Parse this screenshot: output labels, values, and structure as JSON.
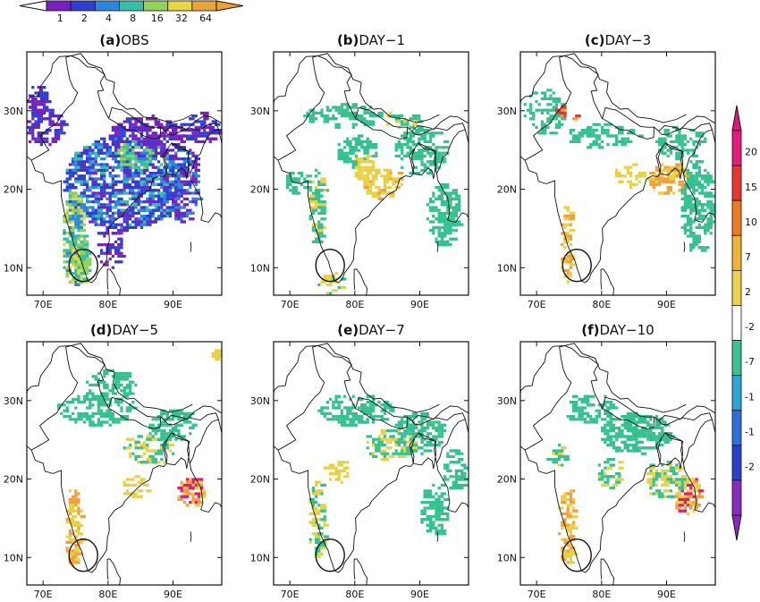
{
  "chart_data": {
    "type": "heatmap",
    "top_colorbar": {
      "ticks": [
        "1",
        "2",
        "4",
        "8",
        "16",
        "32",
        "64"
      ],
      "colors": [
        "#7a1fbf",
        "#2f3fd6",
        "#2a86e0",
        "#33bfa8",
        "#8fd35a",
        "#e8d642",
        "#e8a23a"
      ],
      "extends": "both"
    },
    "right_colorbar": {
      "ticks": [
        "20",
        "15",
        "10",
        "7",
        "2",
        "-2",
        "-7",
        "-1",
        "-1",
        "-2"
      ],
      "colors": [
        "#e6197f",
        "#e8352e",
        "#f07a1f",
        "#f0b43a",
        "#ead24a",
        "#ffffff",
        "#3cc38f",
        "#2aa6d8",
        "#2a6fdc",
        "#2a3fc9",
        "#8a2bbf"
      ],
      "extends": "both"
    },
    "panels": [
      {
        "label": "(a)",
        "title": "OBS",
        "style": "obs"
      },
      {
        "label": "(b)",
        "title": "DAY−1",
        "style": "diff1"
      },
      {
        "label": "(c)",
        "title": "DAY−3",
        "style": "diff3"
      },
      {
        "label": "(d)",
        "title": "DAY−5",
        "style": "diff5"
      },
      {
        "label": "(e)",
        "title": "DAY−7",
        "style": "diff7"
      },
      {
        "label": "(f)",
        "title": "DAY−10",
        "style": "diff10"
      }
    ],
    "x_ticks": [
      "70E",
      "80E",
      "90E"
    ],
    "y_ticks": [
      "10N",
      "20N",
      "30N"
    ],
    "xlim": [
      67.5,
      97.5
    ],
    "ylim": [
      6.5,
      37.5
    ],
    "highlight_circle": {
      "lon": 76.2,
      "lat": 10.3
    }
  }
}
